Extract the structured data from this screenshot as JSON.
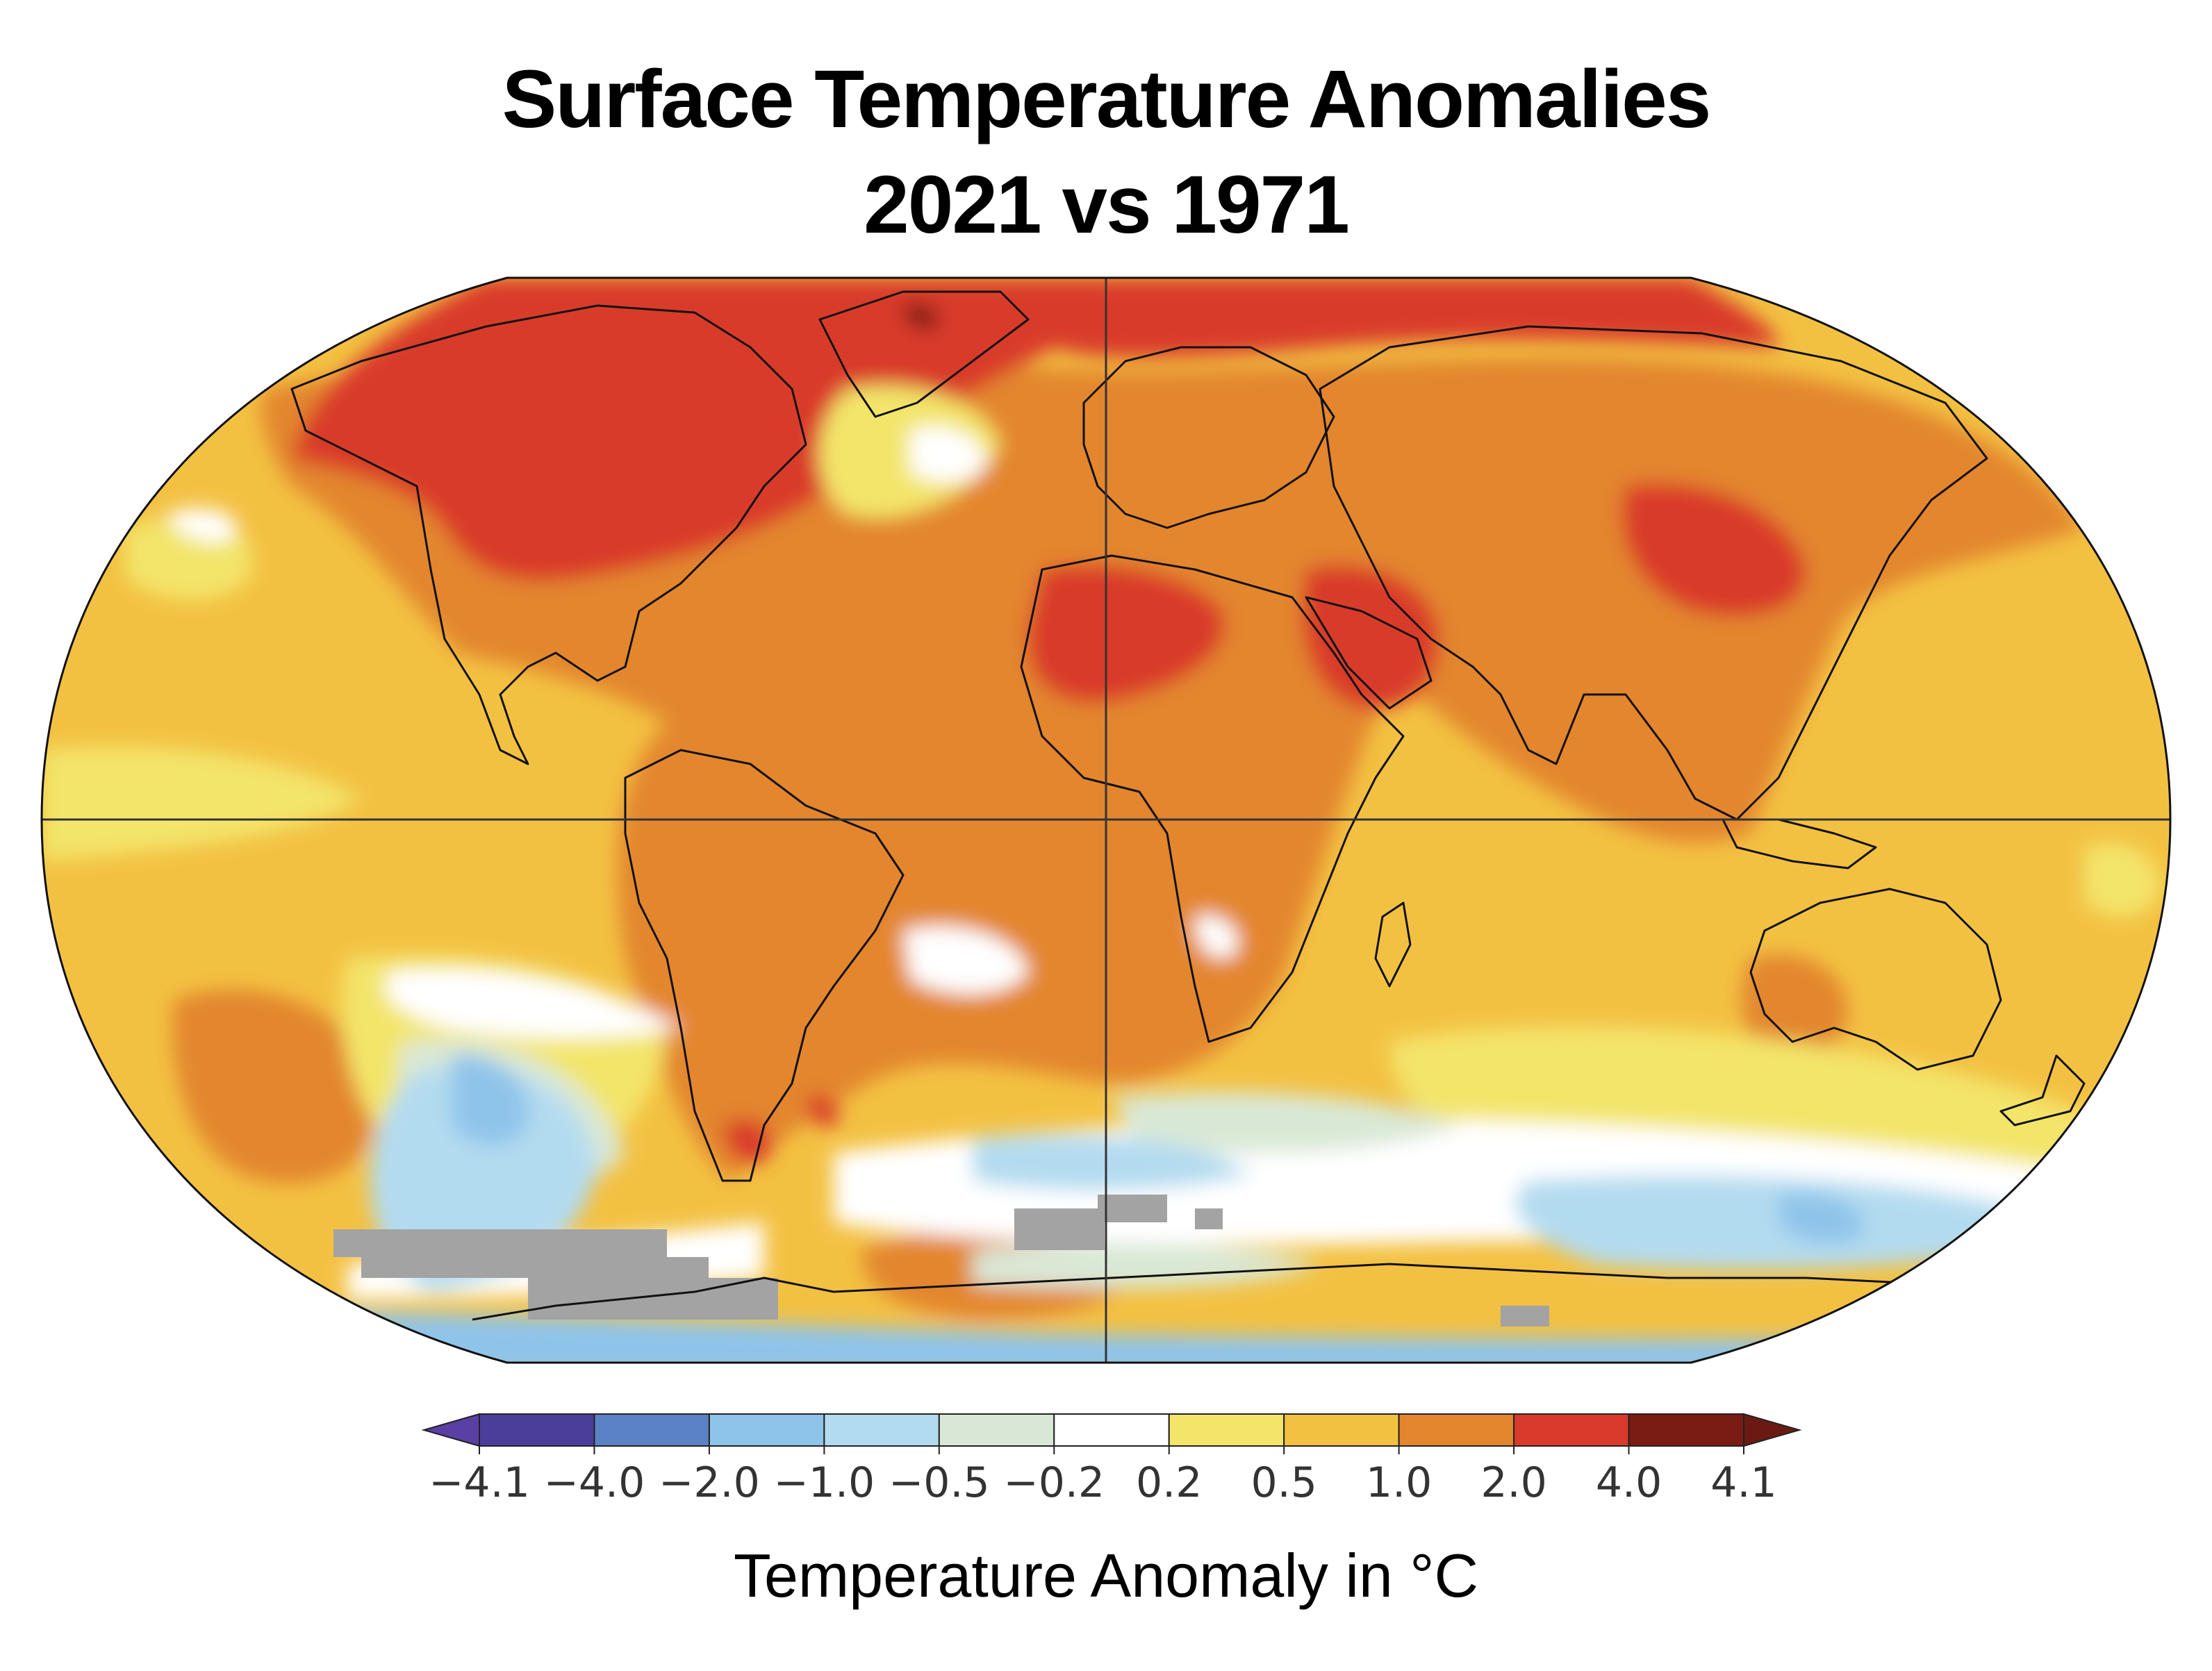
{
  "title": {
    "line1": "Surface Temperature Anomalies",
    "line2": "2021 vs 1971"
  },
  "map": {
    "projection": "robinson",
    "gridlines": [
      "equator",
      "prime-meridian"
    ]
  },
  "colorbar": {
    "label": "Temperature Anomaly in °C",
    "ticks": [
      "−4.1",
      "−4.0",
      "−2.0",
      "−1.0",
      "−0.5",
      "−0.2",
      "0.2",
      "0.5",
      "1.0",
      "2.0",
      "4.0",
      "4.1"
    ],
    "bins": [
      {
        "from": "−4.1",
        "to": "−4.0",
        "color": "#4b3d9a"
      },
      {
        "from": "−4.0",
        "to": "−2.0",
        "color": "#5b82c4"
      },
      {
        "from": "−2.0",
        "to": "−1.0",
        "color": "#8fc4ea"
      },
      {
        "from": "−1.0",
        "to": "−0.5",
        "color": "#b3dbf0"
      },
      {
        "from": "−0.5",
        "to": "−0.2",
        "color": "#d9e8d6"
      },
      {
        "from": "−0.2",
        "to": "0.2",
        "color": "#ffffff"
      },
      {
        "from": "0.2",
        "to": "0.5",
        "color": "#f3e56a"
      },
      {
        "from": "0.5",
        "to": "1.0",
        "color": "#f3c142"
      },
      {
        "from": "1.0",
        "to": "2.0",
        "color": "#e3862e"
      },
      {
        "from": "2.0",
        "to": "4.0",
        "color": "#d93a2b"
      },
      {
        "from": "4.0",
        "to": "4.1",
        "color": "#7a1c14"
      }
    ],
    "below_color": "#5a3fa5",
    "above_color": "#6b1a12",
    "no_data_color": "#a3a3a3"
  }
}
